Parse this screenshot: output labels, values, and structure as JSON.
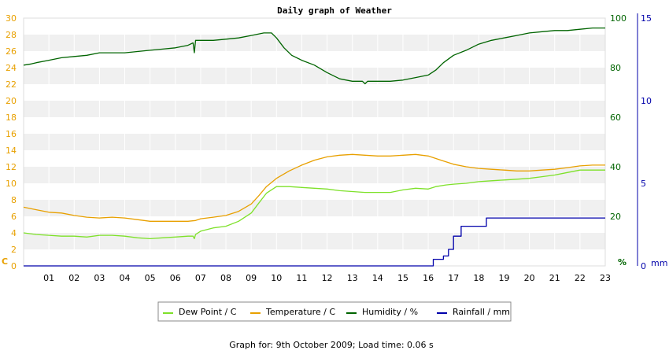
{
  "chart_data": {
    "type": "line",
    "title": "Daily graph of Weather",
    "footer": "Graph for: 9th October 2009; Load time: 0.06 s",
    "x_ticks": [
      "01",
      "02",
      "03",
      "04",
      "05",
      "06",
      "07",
      "08",
      "09",
      "10",
      "11",
      "12",
      "13",
      "14",
      "15",
      "16",
      "17",
      "18",
      "19",
      "20",
      "21",
      "22",
      "23"
    ],
    "xlim": [
      0,
      23
    ],
    "axes": {
      "left": {
        "unit_label": "C",
        "range": [
          0,
          30
        ],
        "ticks": [
          0,
          2,
          4,
          6,
          8,
          10,
          12,
          14,
          16,
          18,
          20,
          22,
          24,
          26,
          28,
          30
        ],
        "color": "#e8a000"
      },
      "right1": {
        "unit_label": "%",
        "range": [
          0,
          100
        ],
        "ticks": [
          0,
          20,
          40,
          60,
          80,
          100
        ],
        "color": "#006400"
      },
      "right2": {
        "unit_label": "mm",
        "range": [
          0,
          15
        ],
        "ticks": [
          0,
          5,
          10,
          15
        ],
        "color": "#0000aa"
      }
    },
    "grid": "horizontal bands",
    "legend_position": "bottom",
    "series": [
      {
        "name": "Dew Point / C",
        "axis": "left",
        "color": "#7ee12a",
        "points": [
          [
            0,
            4.0
          ],
          [
            0.5,
            3.8
          ],
          [
            1,
            3.7
          ],
          [
            1.5,
            3.6
          ],
          [
            2,
            3.6
          ],
          [
            2.5,
            3.5
          ],
          [
            3,
            3.7
          ],
          [
            3.5,
            3.7
          ],
          [
            4,
            3.6
          ],
          [
            4.5,
            3.4
          ],
          [
            5,
            3.3
          ],
          [
            5.5,
            3.4
          ],
          [
            6,
            3.5
          ],
          [
            6.5,
            3.6
          ],
          [
            6.7,
            3.6
          ],
          [
            6.75,
            3.3
          ],
          [
            6.8,
            3.8
          ],
          [
            7,
            4.2
          ],
          [
            7.5,
            4.6
          ],
          [
            8,
            4.8
          ],
          [
            8.5,
            5.4
          ],
          [
            9,
            6.4
          ],
          [
            9.3,
            7.6
          ],
          [
            9.6,
            8.8
          ],
          [
            10,
            9.6
          ],
          [
            10.5,
            9.6
          ],
          [
            11,
            9.5
          ],
          [
            11.5,
            9.4
          ],
          [
            12,
            9.3
          ],
          [
            12.5,
            9.1
          ],
          [
            13,
            9.0
          ],
          [
            13.5,
            8.9
          ],
          [
            14,
            8.9
          ],
          [
            14.5,
            8.9
          ],
          [
            15,
            9.2
          ],
          [
            15.5,
            9.4
          ],
          [
            16,
            9.3
          ],
          [
            16.3,
            9.6
          ],
          [
            16.7,
            9.8
          ],
          [
            17,
            9.9
          ],
          [
            17.5,
            10.0
          ],
          [
            18,
            10.2
          ],
          [
            18.5,
            10.3
          ],
          [
            19,
            10.4
          ],
          [
            19.5,
            10.5
          ],
          [
            20,
            10.6
          ],
          [
            20.5,
            10.8
          ],
          [
            21,
            11.0
          ],
          [
            21.5,
            11.3
          ],
          [
            22,
            11.6
          ],
          [
            22.5,
            11.6
          ],
          [
            23,
            11.6
          ]
        ]
      },
      {
        "name": "Temperature / C",
        "axis": "left",
        "color": "#e8a000",
        "points": [
          [
            0,
            7.1
          ],
          [
            0.5,
            6.8
          ],
          [
            1,
            6.5
          ],
          [
            1.5,
            6.4
          ],
          [
            2,
            6.1
          ],
          [
            2.5,
            5.9
          ],
          [
            3,
            5.8
          ],
          [
            3.5,
            5.9
          ],
          [
            4,
            5.8
          ],
          [
            4.5,
            5.6
          ],
          [
            5,
            5.4
          ],
          [
            5.5,
            5.4
          ],
          [
            6,
            5.4
          ],
          [
            6.5,
            5.4
          ],
          [
            6.8,
            5.5
          ],
          [
            7,
            5.7
          ],
          [
            7.5,
            5.9
          ],
          [
            8,
            6.1
          ],
          [
            8.5,
            6.6
          ],
          [
            9,
            7.5
          ],
          [
            9.3,
            8.5
          ],
          [
            9.6,
            9.6
          ],
          [
            10,
            10.6
          ],
          [
            10.5,
            11.5
          ],
          [
            11,
            12.2
          ],
          [
            11.5,
            12.8
          ],
          [
            12,
            13.2
          ],
          [
            12.5,
            13.4
          ],
          [
            13,
            13.5
          ],
          [
            13.5,
            13.4
          ],
          [
            14,
            13.3
          ],
          [
            14.5,
            13.3
          ],
          [
            15,
            13.4
          ],
          [
            15.5,
            13.5
          ],
          [
            16,
            13.3
          ],
          [
            16.5,
            12.8
          ],
          [
            17,
            12.3
          ],
          [
            17.5,
            12.0
          ],
          [
            18,
            11.8
          ],
          [
            18.5,
            11.7
          ],
          [
            19,
            11.6
          ],
          [
            19.5,
            11.5
          ],
          [
            20,
            11.5
          ],
          [
            20.5,
            11.6
          ],
          [
            21,
            11.7
          ],
          [
            21.5,
            11.9
          ],
          [
            22,
            12.1
          ],
          [
            22.5,
            12.2
          ],
          [
            23,
            12.2
          ]
        ]
      },
      {
        "name": "Humidity / %",
        "axis": "right1",
        "color": "#006400",
        "points": [
          [
            0,
            81
          ],
          [
            0.3,
            81.5
          ],
          [
            0.5,
            82
          ],
          [
            1,
            83
          ],
          [
            1.5,
            84
          ],
          [
            2,
            84.5
          ],
          [
            2.5,
            85
          ],
          [
            3,
            86
          ],
          [
            3.5,
            86
          ],
          [
            4,
            86
          ],
          [
            4.5,
            86.5
          ],
          [
            5,
            87
          ],
          [
            5.5,
            87.5
          ],
          [
            6,
            88
          ],
          [
            6.5,
            89
          ],
          [
            6.7,
            90
          ],
          [
            6.75,
            86
          ],
          [
            6.8,
            91
          ],
          [
            7,
            91
          ],
          [
            7.5,
            91
          ],
          [
            8,
            91.5
          ],
          [
            8.5,
            92
          ],
          [
            9,
            93
          ],
          [
            9.5,
            94
          ],
          [
            9.8,
            94
          ],
          [
            10,
            92
          ],
          [
            10.3,
            88
          ],
          [
            10.6,
            85
          ],
          [
            11,
            83
          ],
          [
            11.5,
            81
          ],
          [
            12,
            78
          ],
          [
            12.5,
            75.5
          ],
          [
            13,
            74.5
          ],
          [
            13.4,
            74.5
          ],
          [
            13.5,
            73.5
          ],
          [
            13.6,
            74.5
          ],
          [
            14,
            74.5
          ],
          [
            14.5,
            74.5
          ],
          [
            15,
            75
          ],
          [
            15.5,
            76
          ],
          [
            16,
            77
          ],
          [
            16.3,
            79
          ],
          [
            16.6,
            82
          ],
          [
            17,
            85
          ],
          [
            17.5,
            87
          ],
          [
            18,
            89.5
          ],
          [
            18.5,
            91
          ],
          [
            19,
            92
          ],
          [
            19.5,
            93
          ],
          [
            20,
            94
          ],
          [
            20.5,
            94.5
          ],
          [
            21,
            95
          ],
          [
            21.5,
            95
          ],
          [
            22,
            95.5
          ],
          [
            22.5,
            96
          ],
          [
            23,
            96
          ]
        ]
      },
      {
        "name": "Rainfall / mm",
        "axis": "right2",
        "color": "#0000aa",
        "points": [
          [
            0,
            0
          ],
          [
            16.2,
            0
          ],
          [
            16.2,
            0.4
          ],
          [
            16.6,
            0.4
          ],
          [
            16.6,
            0.6
          ],
          [
            16.8,
            0.6
          ],
          [
            16.8,
            1.0
          ],
          [
            17.0,
            1.0
          ],
          [
            17.0,
            1.8
          ],
          [
            17.3,
            1.8
          ],
          [
            17.3,
            2.4
          ],
          [
            18.3,
            2.4
          ],
          [
            18.3,
            2.9
          ],
          [
            23,
            2.9
          ]
        ]
      }
    ]
  }
}
